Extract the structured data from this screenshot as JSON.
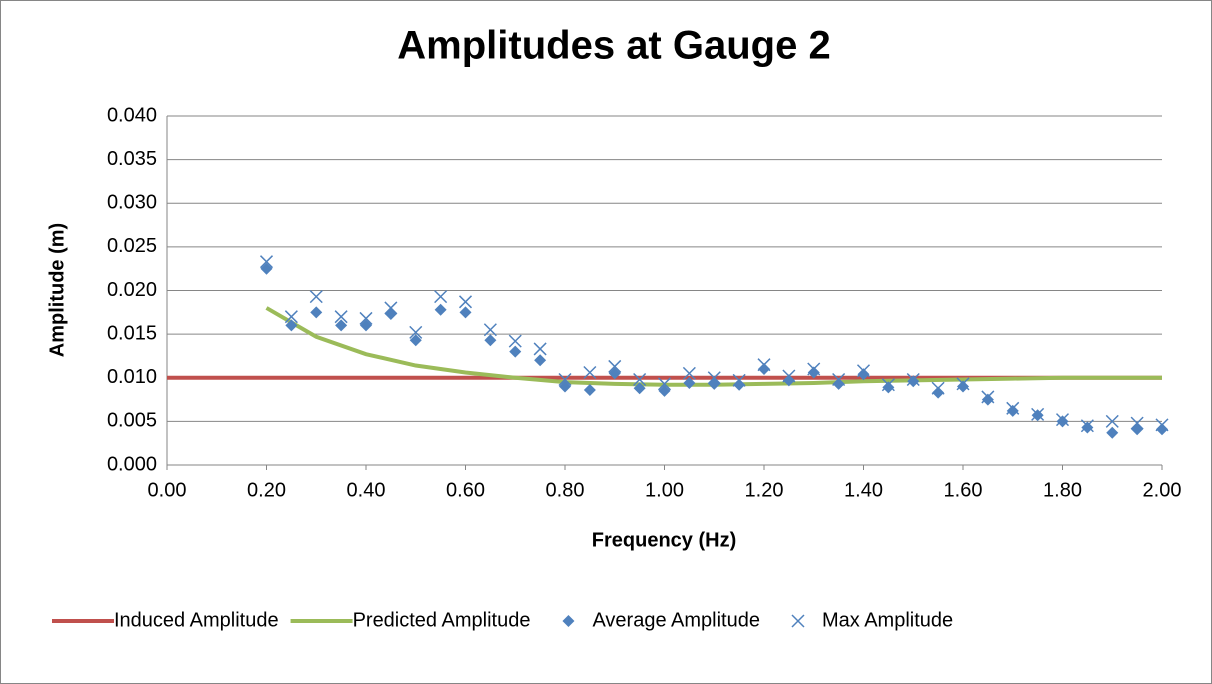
{
  "chart_data": {
    "type": "scatter",
    "title": "Amplitudes at Gauge 2",
    "x_label": "Frequency (Hz)",
    "y_label": "Amplitude (m)",
    "xlim": [
      0,
      2
    ],
    "ylim": [
      0,
      0.04
    ],
    "xticks": [
      {
        "value": 0,
        "label": "0.00"
      },
      {
        "value": 0.2,
        "label": "0.20"
      },
      {
        "value": 0.4,
        "label": "0.40"
      },
      {
        "value": 0.6,
        "label": "0.60"
      },
      {
        "value": 0.8,
        "label": "0.80"
      },
      {
        "value": 1,
        "label": "1.00"
      },
      {
        "value": 1.2,
        "label": "1.20"
      },
      {
        "value": 1.4,
        "label": "1.40"
      },
      {
        "value": 1.6,
        "label": "1.60"
      },
      {
        "value": 1.8,
        "label": "1.80"
      },
      {
        "value": 2,
        "label": "2.00"
      }
    ],
    "yticks": [
      {
        "value": 0,
        "label": "0.000"
      },
      {
        "value": 0.005,
        "label": "0.005"
      },
      {
        "value": 0.01,
        "label": "0.010"
      },
      {
        "value": 0.015,
        "label": "0.015"
      },
      {
        "value": 0.02,
        "label": "0.020"
      },
      {
        "value": 0.025,
        "label": "0.025"
      },
      {
        "value": 0.03,
        "label": "0.030"
      },
      {
        "value": 0.035,
        "label": "0.035"
      },
      {
        "value": 0.04,
        "label": "0.040"
      }
    ],
    "grid": true,
    "series": [
      {
        "name": "Induced Amplitude",
        "color": "#c0504d",
        "mode": "line",
        "x": [
          0,
          2
        ],
        "values": [
          0.01,
          0.01
        ]
      },
      {
        "name": "Predicted Amplitude",
        "color": "#9bbb59",
        "mode": "line",
        "x": [
          0.2,
          0.3,
          0.4,
          0.5,
          0.6,
          0.7,
          0.8,
          0.9,
          1.0,
          1.1,
          1.2,
          1.3,
          1.4,
          1.5,
          1.6,
          1.7,
          1.8,
          1.9,
          2.0
        ],
        "values": [
          0.018,
          0.0147,
          0.0127,
          0.0114,
          0.0106,
          0.01,
          0.0095,
          0.0093,
          0.0092,
          0.0092,
          0.0093,
          0.0094,
          0.0096,
          0.0097,
          0.0098,
          0.0099,
          0.01,
          0.01,
          0.01
        ]
      },
      {
        "name": "Average Amplitude",
        "color": "#4f81bd",
        "mode": "diamond",
        "x": [
          0.2,
          0.25,
          0.3,
          0.35,
          0.4,
          0.45,
          0.5,
          0.55,
          0.6,
          0.65,
          0.7,
          0.75,
          0.8,
          0.85,
          0.9,
          0.95,
          1.0,
          1.05,
          1.1,
          1.15,
          1.2,
          1.25,
          1.3,
          1.35,
          1.4,
          1.45,
          1.5,
          1.55,
          1.6,
          1.65,
          1.7,
          1.75,
          1.8,
          1.85,
          1.9,
          1.95,
          2.0
        ],
        "values": [
          0.0225,
          0.016,
          0.0175,
          0.016,
          0.016,
          0.0173,
          0.0143,
          0.0178,
          0.0175,
          0.0143,
          0.013,
          0.012,
          0.009,
          0.0086,
          0.0105,
          0.0088,
          0.0085,
          0.0094,
          0.0093,
          0.0092,
          0.011,
          0.0097,
          0.0106,
          0.0093,
          0.0104,
          0.0089,
          0.0096,
          0.0083,
          0.009,
          0.0075,
          0.0062,
          0.0057,
          0.005,
          0.0043,
          0.0037,
          0.0041,
          0.0041
        ]
      },
      {
        "name": "Max Amplitude",
        "color": "#4f81bd",
        "mode": "cross",
        "x": [
          0.2,
          0.25,
          0.3,
          0.35,
          0.4,
          0.45,
          0.5,
          0.55,
          0.6,
          0.65,
          0.7,
          0.75,
          0.8,
          0.85,
          0.9,
          0.95,
          1.0,
          1.05,
          1.1,
          1.15,
          1.2,
          1.25,
          1.3,
          1.35,
          1.4,
          1.45,
          1.5,
          1.55,
          1.6,
          1.65,
          1.7,
          1.75,
          1.8,
          1.85,
          1.9,
          1.95,
          2.0
        ],
        "values": [
          0.0233,
          0.017,
          0.0193,
          0.017,
          0.0168,
          0.018,
          0.0152,
          0.0193,
          0.0187,
          0.0155,
          0.0142,
          0.0133,
          0.0098,
          0.0106,
          0.0113,
          0.0098,
          0.0093,
          0.0105,
          0.01,
          0.0097,
          0.0115,
          0.0102,
          0.011,
          0.0098,
          0.0108,
          0.0092,
          0.0098,
          0.0088,
          0.0093,
          0.0078,
          0.0065,
          0.0058,
          0.0052,
          0.0045,
          0.005,
          0.0048,
          0.0046
        ]
      }
    ]
  }
}
